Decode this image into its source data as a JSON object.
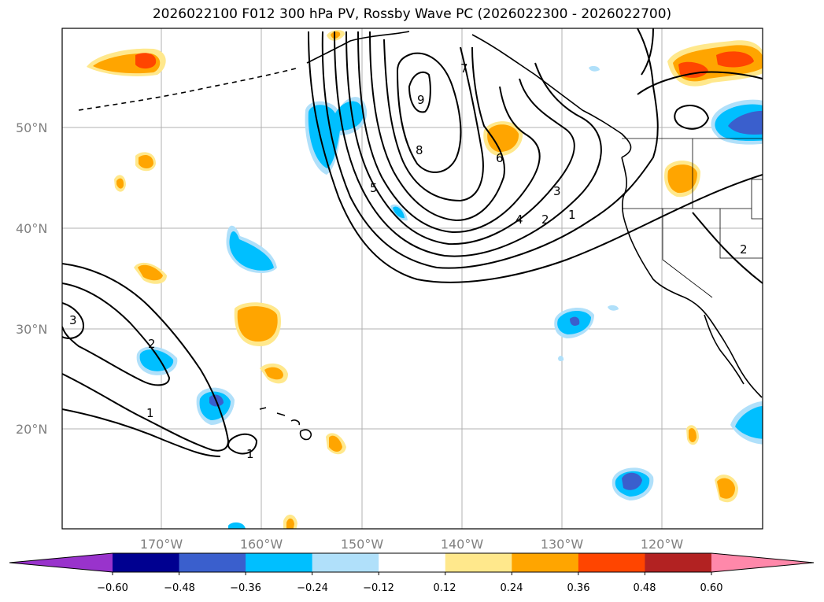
{
  "title": "2026022100 F012 300 hPa PV, Rossby Wave PC (2026022300 - 2026022700)",
  "map": {
    "lat_labels": [
      "50°N",
      "40°N",
      "30°N",
      "20°N"
    ],
    "lon_labels": [
      "170°W",
      "160°W",
      "150°W",
      "140°W",
      "130°W",
      "120°W"
    ],
    "gridlines": true
  },
  "contours": {
    "labels": [
      "9",
      "8",
      "7",
      "6",
      "5",
      "4",
      "3",
      "2",
      "1",
      "3",
      "2",
      "1",
      "1",
      "2"
    ]
  },
  "colorbar": {
    "ticks": [
      "−0.60",
      "−0.48",
      "−0.36",
      "−0.24",
      "−0.12",
      "0.12",
      "0.24",
      "0.36",
      "0.48",
      "0.60"
    ],
    "colors": [
      "#9933cc",
      "#000090",
      "#3a5fcd",
      "#00bfff",
      "#b0e0fa",
      "#ffffff",
      "#ffe88c",
      "#ffa500",
      "#ff4500",
      "#b22222",
      "#ff88aa"
    ]
  }
}
